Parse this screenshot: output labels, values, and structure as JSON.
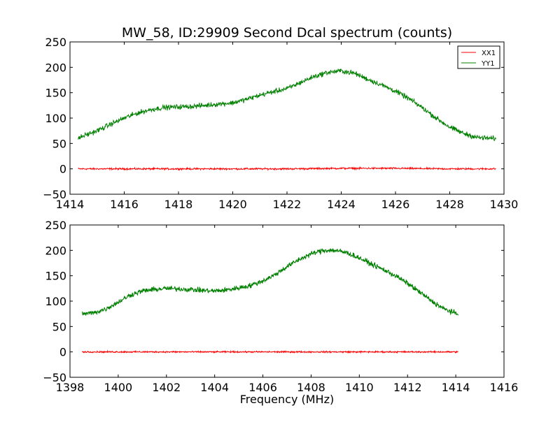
{
  "title": "MW_58, ID:29909 Second Dcal spectrum (counts)",
  "xlabel": "Frequency (MHz)",
  "chart_data": [
    {
      "type": "line",
      "title": "MW_58, ID:29909 Second Dcal spectrum (counts)",
      "xlabel": "",
      "ylabel": "",
      "xlim": [
        1414,
        1430
      ],
      "ylim": [
        -50,
        250
      ],
      "xticks": [
        1414,
        1416,
        1418,
        1420,
        1422,
        1424,
        1426,
        1428,
        1430
      ],
      "yticks": [
        -50,
        0,
        50,
        100,
        150,
        200,
        250
      ],
      "xtick_labels": [
        "1414",
        "1416",
        "1418",
        "1420",
        "1422",
        "1424",
        "1426",
        "1428",
        "1430"
      ],
      "ytick_labels": [
        "−50",
        "0",
        "50",
        "100",
        "150",
        "200",
        "250"
      ],
      "legend": {
        "placement": "top-right",
        "entries": [
          "XX1",
          "YY1"
        ]
      },
      "grid": false,
      "series": [
        {
          "name": "XX1",
          "color": "#ff0000",
          "x": [
            1414.3,
            1416,
            1418,
            1420,
            1422,
            1424,
            1426,
            1428,
            1429.7
          ],
          "y": [
            0,
            0,
            0,
            0,
            0,
            1,
            1,
            0,
            0
          ],
          "noise": 1.2
        },
        {
          "name": "YY1",
          "color": "#008000",
          "x": [
            1414.3,
            1414.5,
            1415,
            1415.5,
            1416,
            1416.5,
            1417,
            1417.5,
            1418,
            1418.5,
            1419,
            1419.5,
            1420,
            1420.5,
            1421,
            1421.5,
            1422,
            1422.5,
            1423,
            1423.5,
            1424,
            1424.5,
            1425,
            1425.5,
            1426,
            1426.5,
            1427,
            1427.5,
            1428,
            1428.5,
            1429,
            1429.5,
            1429.7
          ],
          "y": [
            60,
            65,
            75,
            88,
            100,
            110,
            117,
            121,
            122,
            123,
            125,
            128,
            130,
            137,
            145,
            152,
            158,
            170,
            182,
            190,
            193,
            188,
            176,
            165,
            153,
            138,
            120,
            100,
            82,
            70,
            62,
            60,
            60
          ],
          "noise": 3.5
        }
      ]
    },
    {
      "type": "line",
      "title": "",
      "xlabel": "Frequency (MHz)",
      "ylabel": "",
      "xlim": [
        1398,
        1416
      ],
      "ylim": [
        -50,
        250
      ],
      "xticks": [
        1398,
        1400,
        1402,
        1404,
        1406,
        1408,
        1410,
        1412,
        1414,
        1416
      ],
      "yticks": [
        -50,
        0,
        50,
        100,
        150,
        200,
        250
      ],
      "xtick_labels": [
        "1398",
        "1400",
        "1402",
        "1404",
        "1406",
        "1408",
        "1410",
        "1412",
        "1414",
        "1416"
      ],
      "ytick_labels": [
        "−50",
        "0",
        "50",
        "100",
        "150",
        "200",
        "250"
      ],
      "grid": false,
      "series": [
        {
          "color": "#ff0000",
          "x": [
            1398.5,
            1400,
            1402,
            1404,
            1406,
            1408,
            1410,
            1412,
            1414.1
          ],
          "y": [
            0,
            0,
            0,
            0,
            0,
            0,
            0,
            0,
            0
          ],
          "noise": 1.0
        },
        {
          "color": "#008000",
          "x": [
            1398.5,
            1399,
            1399.5,
            1400,
            1400.5,
            1401,
            1401.5,
            1402,
            1402.5,
            1403,
            1403.5,
            1404,
            1404.5,
            1405,
            1405.5,
            1406,
            1406.5,
            1407,
            1407.5,
            1408,
            1408.5,
            1409,
            1409.5,
            1410,
            1410.5,
            1411,
            1411.5,
            1412,
            1412.5,
            1413,
            1413.5,
            1414.1
          ],
          "y": [
            75,
            77,
            85,
            98,
            112,
            120,
            123,
            125,
            124,
            123,
            121,
            120,
            122,
            126,
            131,
            140,
            152,
            168,
            182,
            193,
            200,
            200,
            195,
            185,
            173,
            162,
            150,
            135,
            118,
            100,
            85,
            74
          ],
          "noise": 3.5
        }
      ]
    }
  ]
}
